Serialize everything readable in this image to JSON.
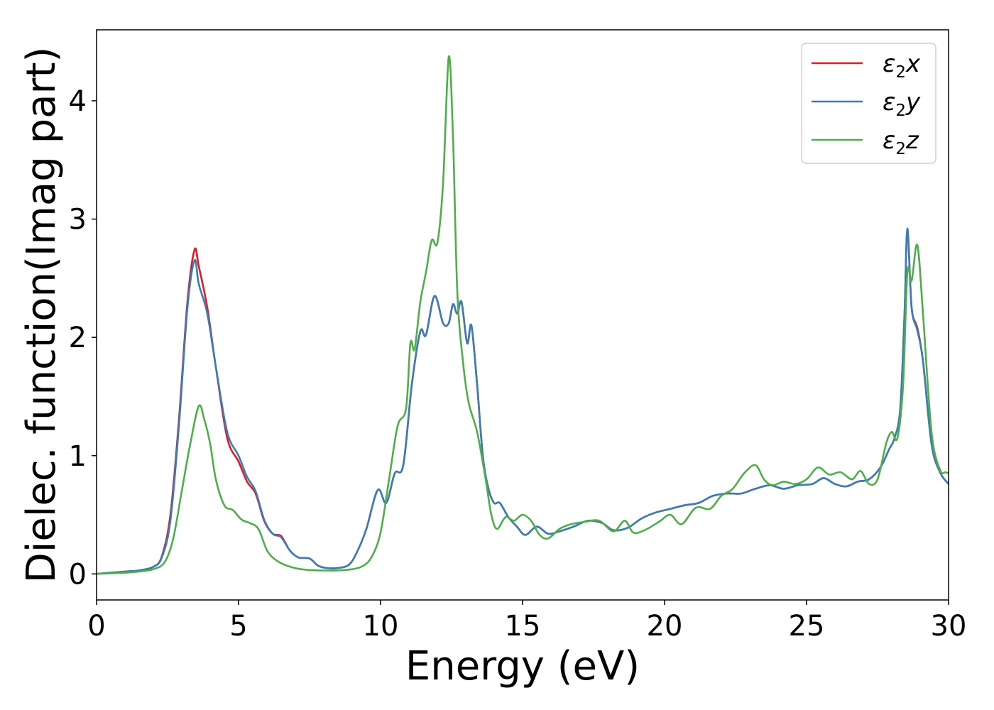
{
  "chart_data": {
    "type": "line",
    "title": "",
    "xlabel": "Energy (eV)",
    "ylabel": "Dielec. function(Imag part)",
    "xlim": [
      0,
      30
    ],
    "ylim": [
      -0.22,
      4.6
    ],
    "xticks": [
      0,
      5,
      10,
      15,
      20,
      25,
      30
    ],
    "yticks": [
      0,
      1,
      2,
      3,
      4
    ],
    "grid": false,
    "legend_position": "top-right",
    "series": [
      {
        "name": "ε2x",
        "legend": {
          "base": "ε",
          "sub": "2",
          "var": "x"
        },
        "color": "#e41a1c",
        "points": [
          [
            0,
            0
          ],
          [
            1,
            0.02
          ],
          [
            1.5,
            0.03
          ],
          [
            2,
            0.06
          ],
          [
            2.3,
            0.15
          ],
          [
            2.6,
            0.5
          ],
          [
            2.9,
            1.3
          ],
          [
            3.2,
            2.3
          ],
          [
            3.45,
            2.74
          ],
          [
            3.6,
            2.6
          ],
          [
            3.9,
            2.25
          ],
          [
            4.2,
            1.75
          ],
          [
            4.6,
            1.15
          ],
          [
            5.0,
            0.95
          ],
          [
            5.3,
            0.78
          ],
          [
            5.6,
            0.68
          ],
          [
            5.9,
            0.45
          ],
          [
            6.2,
            0.34
          ],
          [
            6.5,
            0.32
          ],
          [
            6.8,
            0.2
          ],
          [
            7.1,
            0.14
          ],
          [
            7.5,
            0.13
          ],
          [
            7.8,
            0.07
          ],
          [
            8.1,
            0.05
          ],
          [
            8.5,
            0.05
          ],
          [
            8.9,
            0.08
          ],
          [
            9.2,
            0.2
          ],
          [
            9.5,
            0.38
          ],
          [
            9.9,
            0.71
          ],
          [
            10.2,
            0.6
          ],
          [
            10.5,
            0.85
          ],
          [
            10.8,
            0.92
          ],
          [
            11.1,
            1.6
          ],
          [
            11.4,
            2.05
          ],
          [
            11.6,
            2.02
          ],
          [
            11.9,
            2.35
          ],
          [
            12.2,
            2.12
          ],
          [
            12.4,
            2.12
          ],
          [
            12.55,
            2.28
          ],
          [
            12.7,
            2.2
          ],
          [
            12.85,
            2.3
          ],
          [
            13.05,
            1.95
          ],
          [
            13.2,
            2.1
          ],
          [
            13.4,
            1.6
          ],
          [
            13.6,
            1.0
          ],
          [
            13.8,
            0.72
          ],
          [
            14.0,
            0.6
          ],
          [
            14.2,
            0.6
          ],
          [
            14.5,
            0.48
          ],
          [
            14.8,
            0.4
          ],
          [
            15.1,
            0.33
          ],
          [
            15.5,
            0.4
          ],
          [
            15.9,
            0.34
          ],
          [
            16.3,
            0.36
          ],
          [
            16.8,
            0.4
          ],
          [
            17.3,
            0.45
          ],
          [
            17.8,
            0.43
          ],
          [
            18.2,
            0.37
          ],
          [
            18.7,
            0.39
          ],
          [
            19.2,
            0.47
          ],
          [
            19.7,
            0.52
          ],
          [
            20.2,
            0.55
          ],
          [
            20.7,
            0.58
          ],
          [
            21.2,
            0.6
          ],
          [
            21.7,
            0.66
          ],
          [
            22.2,
            0.68
          ],
          [
            22.7,
            0.68
          ],
          [
            23.2,
            0.72
          ],
          [
            23.7,
            0.75
          ],
          [
            24.2,
            0.72
          ],
          [
            24.7,
            0.75
          ],
          [
            25.2,
            0.76
          ],
          [
            25.6,
            0.81
          ],
          [
            26.0,
            0.76
          ],
          [
            26.4,
            0.74
          ],
          [
            26.8,
            0.78
          ],
          [
            27.2,
            0.8
          ],
          [
            27.6,
            0.9
          ],
          [
            27.9,
            1.05
          ],
          [
            28.1,
            1.15
          ],
          [
            28.3,
            1.4
          ],
          [
            28.45,
            2.2
          ],
          [
            28.55,
            2.9
          ],
          [
            28.7,
            2.25
          ],
          [
            28.9,
            2.08
          ],
          [
            29.1,
            1.8
          ],
          [
            29.4,
            1.1
          ],
          [
            29.7,
            0.86
          ],
          [
            30,
            0.76
          ]
        ]
      },
      {
        "name": "ε2y",
        "legend": {
          "base": "ε",
          "sub": "2",
          "var": "y"
        },
        "color": "#377eb8",
        "points": [
          [
            0,
            0
          ],
          [
            1,
            0.02
          ],
          [
            1.5,
            0.03
          ],
          [
            2,
            0.06
          ],
          [
            2.3,
            0.14
          ],
          [
            2.6,
            0.45
          ],
          [
            2.9,
            1.25
          ],
          [
            3.2,
            2.25
          ],
          [
            3.45,
            2.65
          ],
          [
            3.6,
            2.45
          ],
          [
            3.9,
            2.2
          ],
          [
            4.2,
            1.75
          ],
          [
            4.6,
            1.2
          ],
          [
            5.0,
            1.0
          ],
          [
            5.3,
            0.82
          ],
          [
            5.6,
            0.7
          ],
          [
            5.9,
            0.46
          ],
          [
            6.2,
            0.34
          ],
          [
            6.5,
            0.31
          ],
          [
            6.8,
            0.2
          ],
          [
            7.1,
            0.14
          ],
          [
            7.5,
            0.13
          ],
          [
            7.8,
            0.07
          ],
          [
            8.1,
            0.05
          ],
          [
            8.5,
            0.05
          ],
          [
            8.9,
            0.08
          ],
          [
            9.2,
            0.2
          ],
          [
            9.5,
            0.38
          ],
          [
            9.9,
            0.71
          ],
          [
            10.2,
            0.6
          ],
          [
            10.5,
            0.85
          ],
          [
            10.8,
            0.92
          ],
          [
            11.1,
            1.6
          ],
          [
            11.4,
            2.05
          ],
          [
            11.6,
            2.02
          ],
          [
            11.9,
            2.35
          ],
          [
            12.2,
            2.12
          ],
          [
            12.4,
            2.12
          ],
          [
            12.55,
            2.28
          ],
          [
            12.7,
            2.2
          ],
          [
            12.85,
            2.3
          ],
          [
            13.05,
            1.95
          ],
          [
            13.2,
            2.1
          ],
          [
            13.4,
            1.6
          ],
          [
            13.6,
            1.0
          ],
          [
            13.8,
            0.72
          ],
          [
            14.0,
            0.6
          ],
          [
            14.2,
            0.6
          ],
          [
            14.5,
            0.48
          ],
          [
            14.8,
            0.4
          ],
          [
            15.1,
            0.33
          ],
          [
            15.5,
            0.4
          ],
          [
            15.9,
            0.34
          ],
          [
            16.3,
            0.36
          ],
          [
            16.8,
            0.4
          ],
          [
            17.3,
            0.45
          ],
          [
            17.8,
            0.43
          ],
          [
            18.2,
            0.37
          ],
          [
            18.7,
            0.39
          ],
          [
            19.2,
            0.47
          ],
          [
            19.7,
            0.52
          ],
          [
            20.2,
            0.55
          ],
          [
            20.7,
            0.58
          ],
          [
            21.2,
            0.6
          ],
          [
            21.7,
            0.66
          ],
          [
            22.2,
            0.68
          ],
          [
            22.7,
            0.68
          ],
          [
            23.2,
            0.72
          ],
          [
            23.7,
            0.75
          ],
          [
            24.2,
            0.72
          ],
          [
            24.7,
            0.75
          ],
          [
            25.2,
            0.76
          ],
          [
            25.6,
            0.81
          ],
          [
            26.0,
            0.76
          ],
          [
            26.4,
            0.74
          ],
          [
            26.8,
            0.78
          ],
          [
            27.2,
            0.8
          ],
          [
            27.6,
            0.9
          ],
          [
            27.9,
            1.05
          ],
          [
            28.1,
            1.15
          ],
          [
            28.3,
            1.4
          ],
          [
            28.45,
            2.2
          ],
          [
            28.55,
            2.92
          ],
          [
            28.7,
            2.25
          ],
          [
            28.9,
            2.06
          ],
          [
            29.1,
            1.8
          ],
          [
            29.4,
            1.1
          ],
          [
            29.7,
            0.86
          ],
          [
            30,
            0.76
          ]
        ]
      },
      {
        "name": "ε2z",
        "legend": {
          "base": "ε",
          "sub": "2",
          "var": "z"
        },
        "color": "#4daf4a",
        "points": [
          [
            0,
            0
          ],
          [
            1,
            0.01
          ],
          [
            1.5,
            0.02
          ],
          [
            2,
            0.04
          ],
          [
            2.4,
            0.1
          ],
          [
            2.7,
            0.3
          ],
          [
            3.0,
            0.7
          ],
          [
            3.3,
            1.1
          ],
          [
            3.6,
            1.42
          ],
          [
            3.8,
            1.3
          ],
          [
            4.0,
            1.1
          ],
          [
            4.2,
            0.8
          ],
          [
            4.5,
            0.58
          ],
          [
            4.8,
            0.54
          ],
          [
            5.1,
            0.46
          ],
          [
            5.4,
            0.43
          ],
          [
            5.7,
            0.38
          ],
          [
            6.0,
            0.2
          ],
          [
            6.3,
            0.12
          ],
          [
            6.7,
            0.07
          ],
          [
            7.2,
            0.04
          ],
          [
            7.8,
            0.03
          ],
          [
            8.5,
            0.03
          ],
          [
            9.0,
            0.04
          ],
          [
            9.4,
            0.07
          ],
          [
            9.7,
            0.15
          ],
          [
            10.0,
            0.35
          ],
          [
            10.3,
            0.8
          ],
          [
            10.6,
            1.25
          ],
          [
            10.9,
            1.4
          ],
          [
            11.05,
            1.95
          ],
          [
            11.2,
            1.9
          ],
          [
            11.4,
            2.3
          ],
          [
            11.6,
            2.55
          ],
          [
            11.8,
            2.82
          ],
          [
            12.0,
            2.8
          ],
          [
            12.2,
            3.3
          ],
          [
            12.4,
            4.37
          ],
          [
            12.55,
            3.7
          ],
          [
            12.7,
            2.4
          ],
          [
            12.9,
            1.8
          ],
          [
            13.1,
            1.45
          ],
          [
            13.4,
            1.2
          ],
          [
            13.7,
            0.8
          ],
          [
            13.9,
            0.5
          ],
          [
            14.1,
            0.38
          ],
          [
            14.4,
            0.48
          ],
          [
            14.7,
            0.45
          ],
          [
            15.0,
            0.5
          ],
          [
            15.3,
            0.45
          ],
          [
            15.6,
            0.33
          ],
          [
            15.9,
            0.3
          ],
          [
            16.3,
            0.38
          ],
          [
            16.7,
            0.42
          ],
          [
            17.2,
            0.44
          ],
          [
            17.7,
            0.45
          ],
          [
            18.2,
            0.36
          ],
          [
            18.6,
            0.45
          ],
          [
            18.9,
            0.35
          ],
          [
            19.3,
            0.37
          ],
          [
            19.8,
            0.44
          ],
          [
            20.2,
            0.5
          ],
          [
            20.6,
            0.42
          ],
          [
            21.1,
            0.56
          ],
          [
            21.6,
            0.55
          ],
          [
            22.0,
            0.66
          ],
          [
            22.4,
            0.72
          ],
          [
            22.8,
            0.85
          ],
          [
            23.2,
            0.92
          ],
          [
            23.5,
            0.8
          ],
          [
            23.8,
            0.75
          ],
          [
            24.2,
            0.78
          ],
          [
            24.6,
            0.76
          ],
          [
            25.0,
            0.8
          ],
          [
            25.4,
            0.9
          ],
          [
            25.8,
            0.84
          ],
          [
            26.2,
            0.86
          ],
          [
            26.6,
            0.8
          ],
          [
            26.9,
            0.87
          ],
          [
            27.2,
            0.76
          ],
          [
            27.5,
            0.8
          ],
          [
            27.8,
            1.1
          ],
          [
            28.0,
            1.2
          ],
          [
            28.2,
            1.15
          ],
          [
            28.4,
            1.6
          ],
          [
            28.55,
            2.55
          ],
          [
            28.7,
            2.48
          ],
          [
            28.9,
            2.78
          ],
          [
            29.1,
            2.2
          ],
          [
            29.4,
            1.2
          ],
          [
            29.7,
            0.88
          ],
          [
            29.9,
            0.86
          ],
          [
            30,
            0.85
          ]
        ]
      }
    ]
  }
}
